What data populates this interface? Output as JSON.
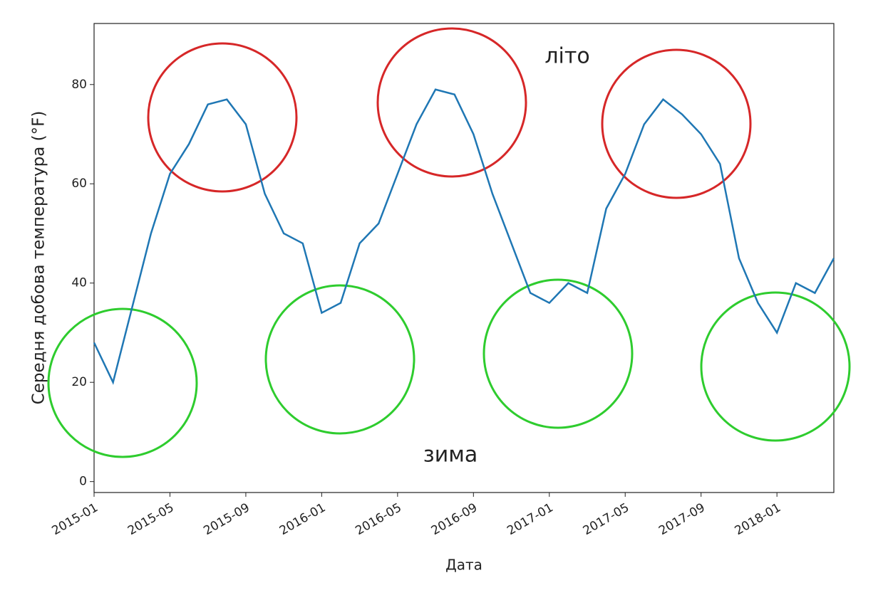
{
  "chart_data": {
    "type": "line",
    "x": [
      "2015-01",
      "2015-02",
      "2015-03",
      "2015-04",
      "2015-05",
      "2015-06",
      "2015-07",
      "2015-08",
      "2015-09",
      "2015-10",
      "2015-11",
      "2015-12",
      "2016-01",
      "2016-02",
      "2016-03",
      "2016-04",
      "2016-05",
      "2016-06",
      "2016-07",
      "2016-08",
      "2016-09",
      "2016-10",
      "2016-11",
      "2016-12",
      "2017-01",
      "2017-02",
      "2017-03",
      "2017-04",
      "2017-05",
      "2017-06",
      "2017-07",
      "2017-08",
      "2017-09",
      "2017-10",
      "2017-11",
      "2017-12",
      "2018-01",
      "2018-02",
      "2018-03",
      "2018-04"
    ],
    "series": [
      {
        "name": "temperature",
        "color": "#1f77b4",
        "values": [
          28,
          20,
          35,
          50,
          62,
          68,
          76,
          77,
          72,
          58,
          50,
          48,
          34,
          36,
          48,
          52,
          62,
          72,
          79,
          78,
          70,
          58,
          48,
          38,
          36,
          40,
          38,
          55,
          62,
          72,
          77,
          74,
          70,
          64,
          45,
          36,
          30,
          40,
          38,
          45
        ]
      }
    ],
    "xlabel": "Дата",
    "ylabel": "Середня добова температура (°F)",
    "xlim": [
      "2015-01",
      "2018-04"
    ],
    "xticks": [
      "2015-01",
      "2015-05",
      "2015-09",
      "2016-01",
      "2016-05",
      "2016-09",
      "2017-01",
      "2017-05",
      "2017-09",
      "2018-01"
    ],
    "ylim": [
      -2.2,
      92.3
    ],
    "yticks": [
      0,
      20,
      40,
      60,
      80
    ],
    "annotations": [
      {
        "text": "літо",
        "color": "#d62728"
      },
      {
        "text": "зима",
        "color": "#2ecc2e"
      }
    ]
  }
}
